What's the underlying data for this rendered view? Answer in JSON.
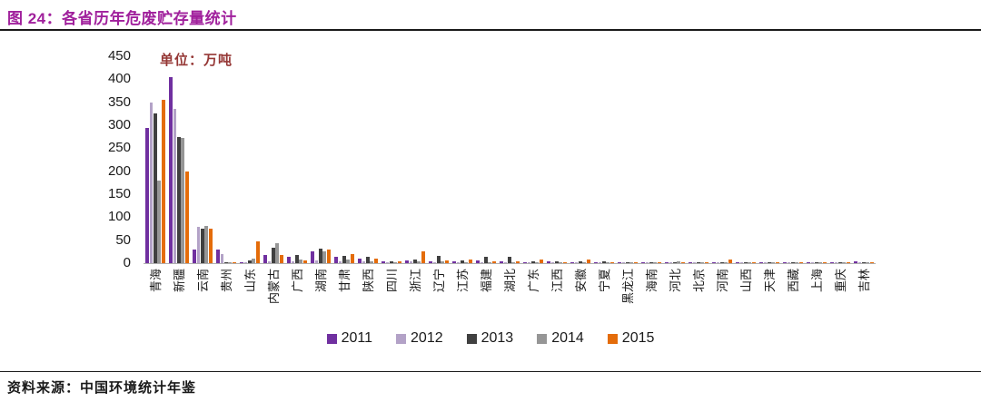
{
  "header": {
    "title": "图 24：各省历年危废贮存量统计"
  },
  "footer": {
    "source": "资料来源：中国环境统计年鉴"
  },
  "colors": {
    "title": "#A0209C",
    "unit_label": "#953735",
    "axis_line": "#b0b0b0",
    "text": "#1a1a1a"
  },
  "chart_data": {
    "type": "bar",
    "title": "各省历年危废贮存量统计",
    "unit_label": "单位：万吨",
    "xlabel": "",
    "ylabel": "",
    "ylim": [
      0,
      450
    ],
    "ytick_step": 50,
    "yticks": [
      450,
      400,
      350,
      300,
      250,
      200,
      150,
      100,
      50,
      0
    ],
    "grid": false,
    "legend_position": "bottom",
    "categories": [
      "青海",
      "新疆",
      "云南",
      "贵州",
      "山东",
      "内蒙古",
      "广西",
      "湖南",
      "甘肃",
      "陕西",
      "四川",
      "浙江",
      "辽宁",
      "江苏",
      "福建",
      "湖北",
      "广东",
      "江西",
      "安徽",
      "宁夏",
      "黑龙江",
      "海南",
      "河北",
      "北京",
      "河南",
      "山西",
      "天津",
      "西藏",
      "上海",
      "重庆",
      "吉林"
    ],
    "series": [
      {
        "name": "2011",
        "color": "#7030A0",
        "values": [
          295,
          405,
          30,
          29,
          2,
          17,
          13,
          26,
          13,
          10,
          4,
          6,
          5,
          4,
          6,
          4,
          3,
          4,
          3,
          2,
          2,
          2,
          2,
          1,
          2,
          2,
          1,
          1,
          1,
          2,
          4
        ]
      },
      {
        "name": "2012",
        "color": "#B3A2C7",
        "values": [
          350,
          335,
          80,
          20,
          3,
          5,
          4,
          6,
          4,
          4,
          3,
          4,
          3,
          3,
          3,
          3,
          2,
          2,
          2,
          2,
          1,
          1,
          1,
          1,
          1,
          1,
          1,
          0.5,
          1,
          1,
          1
        ]
      },
      {
        "name": "2013",
        "color": "#404040",
        "values": [
          325,
          275,
          75,
          3,
          6,
          33,
          17,
          32,
          16,
          13,
          5,
          8,
          15,
          6,
          13,
          13,
          4,
          5,
          5,
          4,
          3,
          2,
          3,
          3,
          3,
          3,
          2,
          1,
          2,
          3,
          2
        ]
      },
      {
        "name": "2014",
        "color": "#969696",
        "values": [
          180,
          273,
          82,
          2,
          10,
          43,
          8,
          25,
          8,
          5,
          3,
          4,
          4,
          3,
          3,
          3,
          3,
          3,
          3,
          2,
          2,
          1,
          5,
          1,
          2,
          1,
          1,
          0.5,
          1,
          1,
          1
        ]
      },
      {
        "name": "2015",
        "color": "#E46C0A",
        "values": [
          355,
          200,
          75,
          2,
          47,
          18,
          6,
          30,
          20,
          9,
          5,
          25,
          7,
          8,
          4,
          5,
          8,
          3,
          8,
          3,
          2,
          1,
          2,
          1,
          8,
          1,
          1,
          1,
          1,
          1,
          1
        ]
      }
    ]
  }
}
